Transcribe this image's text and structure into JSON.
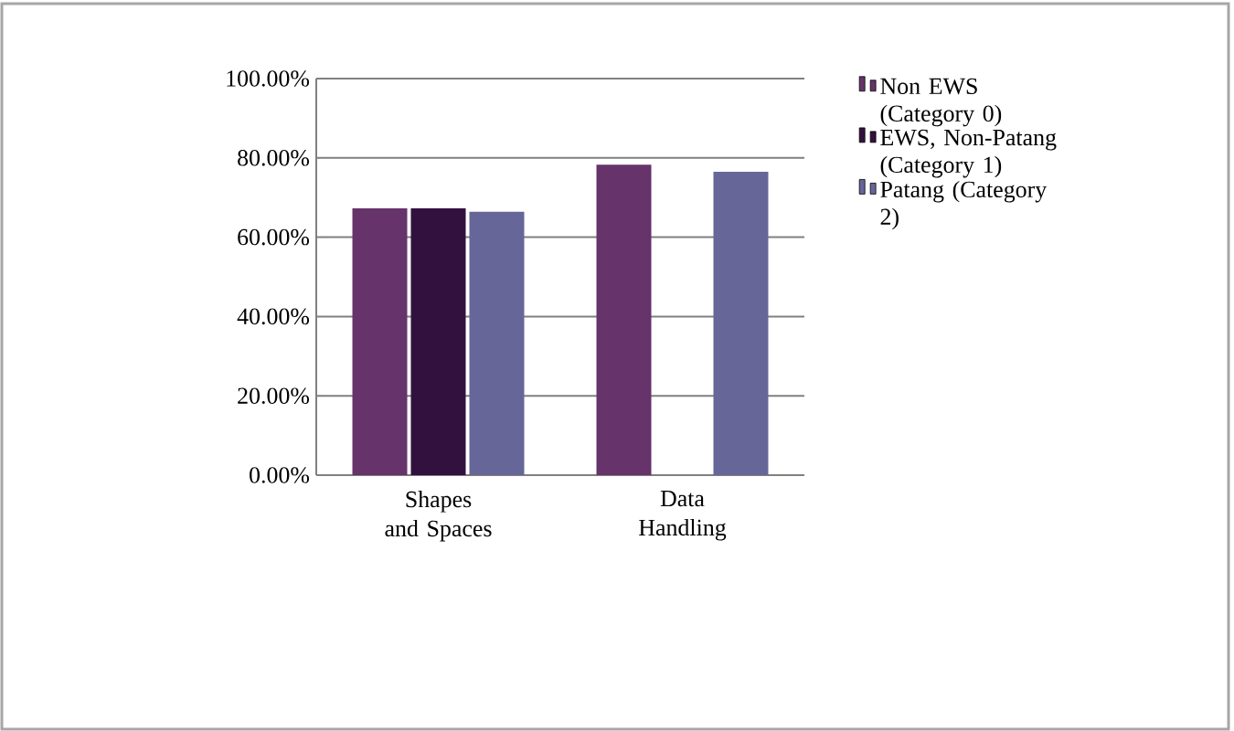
{
  "chart_data": {
    "type": "bar",
    "categories": [
      "Shapes and Spaces",
      "Data Handling"
    ],
    "series": [
      {
        "name": "Non EWS (Category 0)",
        "color": "#66336a",
        "values": [
          67.3,
          78.3
        ]
      },
      {
        "name": "EWS, Non-Patang (Category 1)",
        "color": "#33113f",
        "values": [
          67.3,
          0
        ]
      },
      {
        "name": "Patang (Category 2)",
        "color": "#666699",
        "values": [
          66.4,
          76.5
        ]
      }
    ],
    "ylim": [
      0,
      100
    ],
    "yticks": [
      {
        "value": 0,
        "label": "0.00%"
      },
      {
        "value": 20,
        "label": "20.00%"
      },
      {
        "value": 40,
        "label": "40.00%"
      },
      {
        "value": 60,
        "label": "60.00%"
      },
      {
        "value": 80,
        "label": "80.00%"
      },
      {
        "value": 100,
        "label": "100.00%"
      }
    ],
    "grid": "y",
    "legend": "right"
  }
}
